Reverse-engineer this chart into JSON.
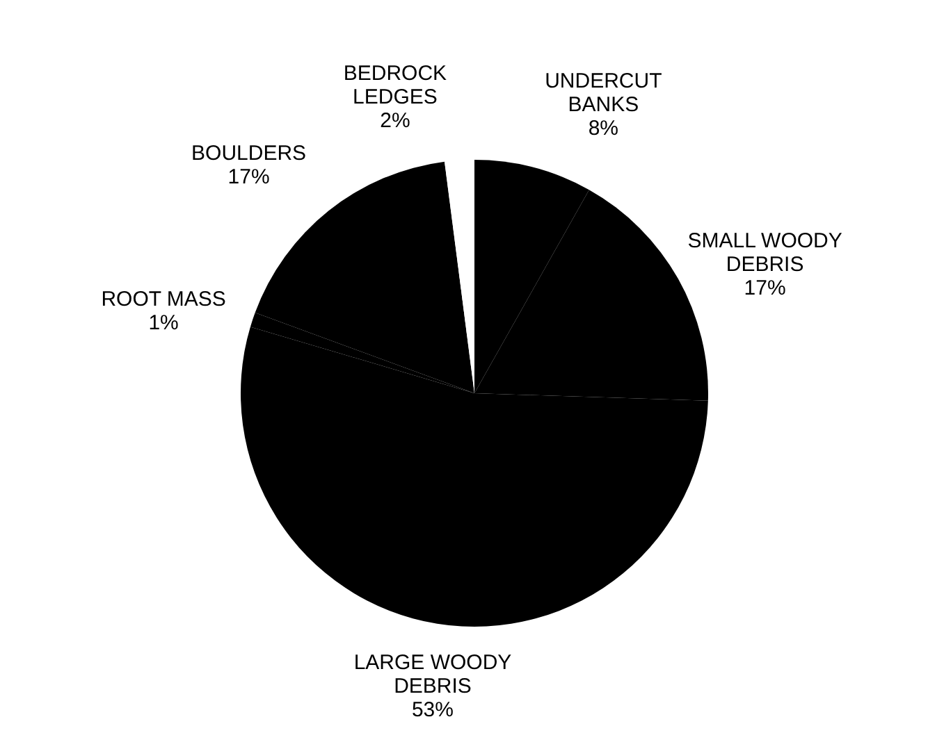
{
  "chart_data": {
    "type": "pie",
    "categories": [
      "UNDERCUT BANKS",
      "SMALL WOODY DEBRIS",
      "LARGE WOODY DEBRIS",
      "ROOT MASS",
      "BOULDERS",
      "BEDROCK LEDGES"
    ],
    "values": [
      8,
      17,
      53,
      1,
      17,
      2
    ],
    "value_labels": [
      "8%",
      "17%",
      "53%",
      "1%",
      "17%",
      "2%"
    ],
    "colors": [
      "#000000",
      "#000000",
      "#000000",
      "#000000",
      "#000000",
      "#ffffff"
    ]
  }
}
